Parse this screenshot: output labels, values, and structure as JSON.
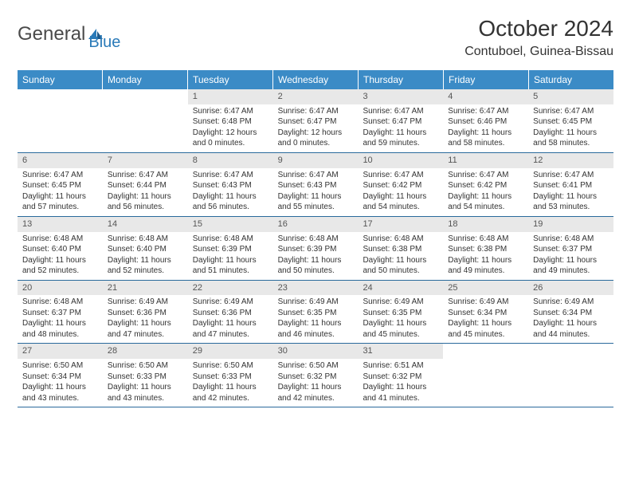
{
  "logo": {
    "text1": "General",
    "text2": "Blue"
  },
  "title": "October 2024",
  "location": "Contuboel, Guinea-Bissau",
  "colors": {
    "header_bg": "#3b8bc6",
    "header_text": "#ffffff",
    "daynum_bg": "#e8e8e8",
    "border": "#2a6a9c",
    "text": "#333333",
    "logo_gray": "#4a4a4a",
    "logo_blue": "#2a7ab8"
  },
  "weekdays": [
    "Sunday",
    "Monday",
    "Tuesday",
    "Wednesday",
    "Thursday",
    "Friday",
    "Saturday"
  ],
  "weeks": [
    [
      {
        "n": "",
        "sr": "",
        "ss": "",
        "dl": ""
      },
      {
        "n": "",
        "sr": "",
        "ss": "",
        "dl": ""
      },
      {
        "n": "1",
        "sr": "6:47 AM",
        "ss": "6:48 PM",
        "dl": "12 hours and 0 minutes."
      },
      {
        "n": "2",
        "sr": "6:47 AM",
        "ss": "6:47 PM",
        "dl": "12 hours and 0 minutes."
      },
      {
        "n": "3",
        "sr": "6:47 AM",
        "ss": "6:47 PM",
        "dl": "11 hours and 59 minutes."
      },
      {
        "n": "4",
        "sr": "6:47 AM",
        "ss": "6:46 PM",
        "dl": "11 hours and 58 minutes."
      },
      {
        "n": "5",
        "sr": "6:47 AM",
        "ss": "6:45 PM",
        "dl": "11 hours and 58 minutes."
      }
    ],
    [
      {
        "n": "6",
        "sr": "6:47 AM",
        "ss": "6:45 PM",
        "dl": "11 hours and 57 minutes."
      },
      {
        "n": "7",
        "sr": "6:47 AM",
        "ss": "6:44 PM",
        "dl": "11 hours and 56 minutes."
      },
      {
        "n": "8",
        "sr": "6:47 AM",
        "ss": "6:43 PM",
        "dl": "11 hours and 56 minutes."
      },
      {
        "n": "9",
        "sr": "6:47 AM",
        "ss": "6:43 PM",
        "dl": "11 hours and 55 minutes."
      },
      {
        "n": "10",
        "sr": "6:47 AM",
        "ss": "6:42 PM",
        "dl": "11 hours and 54 minutes."
      },
      {
        "n": "11",
        "sr": "6:47 AM",
        "ss": "6:42 PM",
        "dl": "11 hours and 54 minutes."
      },
      {
        "n": "12",
        "sr": "6:47 AM",
        "ss": "6:41 PM",
        "dl": "11 hours and 53 minutes."
      }
    ],
    [
      {
        "n": "13",
        "sr": "6:48 AM",
        "ss": "6:40 PM",
        "dl": "11 hours and 52 minutes."
      },
      {
        "n": "14",
        "sr": "6:48 AM",
        "ss": "6:40 PM",
        "dl": "11 hours and 52 minutes."
      },
      {
        "n": "15",
        "sr": "6:48 AM",
        "ss": "6:39 PM",
        "dl": "11 hours and 51 minutes."
      },
      {
        "n": "16",
        "sr": "6:48 AM",
        "ss": "6:39 PM",
        "dl": "11 hours and 50 minutes."
      },
      {
        "n": "17",
        "sr": "6:48 AM",
        "ss": "6:38 PM",
        "dl": "11 hours and 50 minutes."
      },
      {
        "n": "18",
        "sr": "6:48 AM",
        "ss": "6:38 PM",
        "dl": "11 hours and 49 minutes."
      },
      {
        "n": "19",
        "sr": "6:48 AM",
        "ss": "6:37 PM",
        "dl": "11 hours and 49 minutes."
      }
    ],
    [
      {
        "n": "20",
        "sr": "6:48 AM",
        "ss": "6:37 PM",
        "dl": "11 hours and 48 minutes."
      },
      {
        "n": "21",
        "sr": "6:49 AM",
        "ss": "6:36 PM",
        "dl": "11 hours and 47 minutes."
      },
      {
        "n": "22",
        "sr": "6:49 AM",
        "ss": "6:36 PM",
        "dl": "11 hours and 47 minutes."
      },
      {
        "n": "23",
        "sr": "6:49 AM",
        "ss": "6:35 PM",
        "dl": "11 hours and 46 minutes."
      },
      {
        "n": "24",
        "sr": "6:49 AM",
        "ss": "6:35 PM",
        "dl": "11 hours and 45 minutes."
      },
      {
        "n": "25",
        "sr": "6:49 AM",
        "ss": "6:34 PM",
        "dl": "11 hours and 45 minutes."
      },
      {
        "n": "26",
        "sr": "6:49 AM",
        "ss": "6:34 PM",
        "dl": "11 hours and 44 minutes."
      }
    ],
    [
      {
        "n": "27",
        "sr": "6:50 AM",
        "ss": "6:34 PM",
        "dl": "11 hours and 43 minutes."
      },
      {
        "n": "28",
        "sr": "6:50 AM",
        "ss": "6:33 PM",
        "dl": "11 hours and 43 minutes."
      },
      {
        "n": "29",
        "sr": "6:50 AM",
        "ss": "6:33 PM",
        "dl": "11 hours and 42 minutes."
      },
      {
        "n": "30",
        "sr": "6:50 AM",
        "ss": "6:32 PM",
        "dl": "11 hours and 42 minutes."
      },
      {
        "n": "31",
        "sr": "6:51 AM",
        "ss": "6:32 PM",
        "dl": "11 hours and 41 minutes."
      },
      {
        "n": "",
        "sr": "",
        "ss": "",
        "dl": ""
      },
      {
        "n": "",
        "sr": "",
        "ss": "",
        "dl": ""
      }
    ]
  ],
  "labels": {
    "sunrise": "Sunrise:",
    "sunset": "Sunset:",
    "daylight": "Daylight:"
  }
}
